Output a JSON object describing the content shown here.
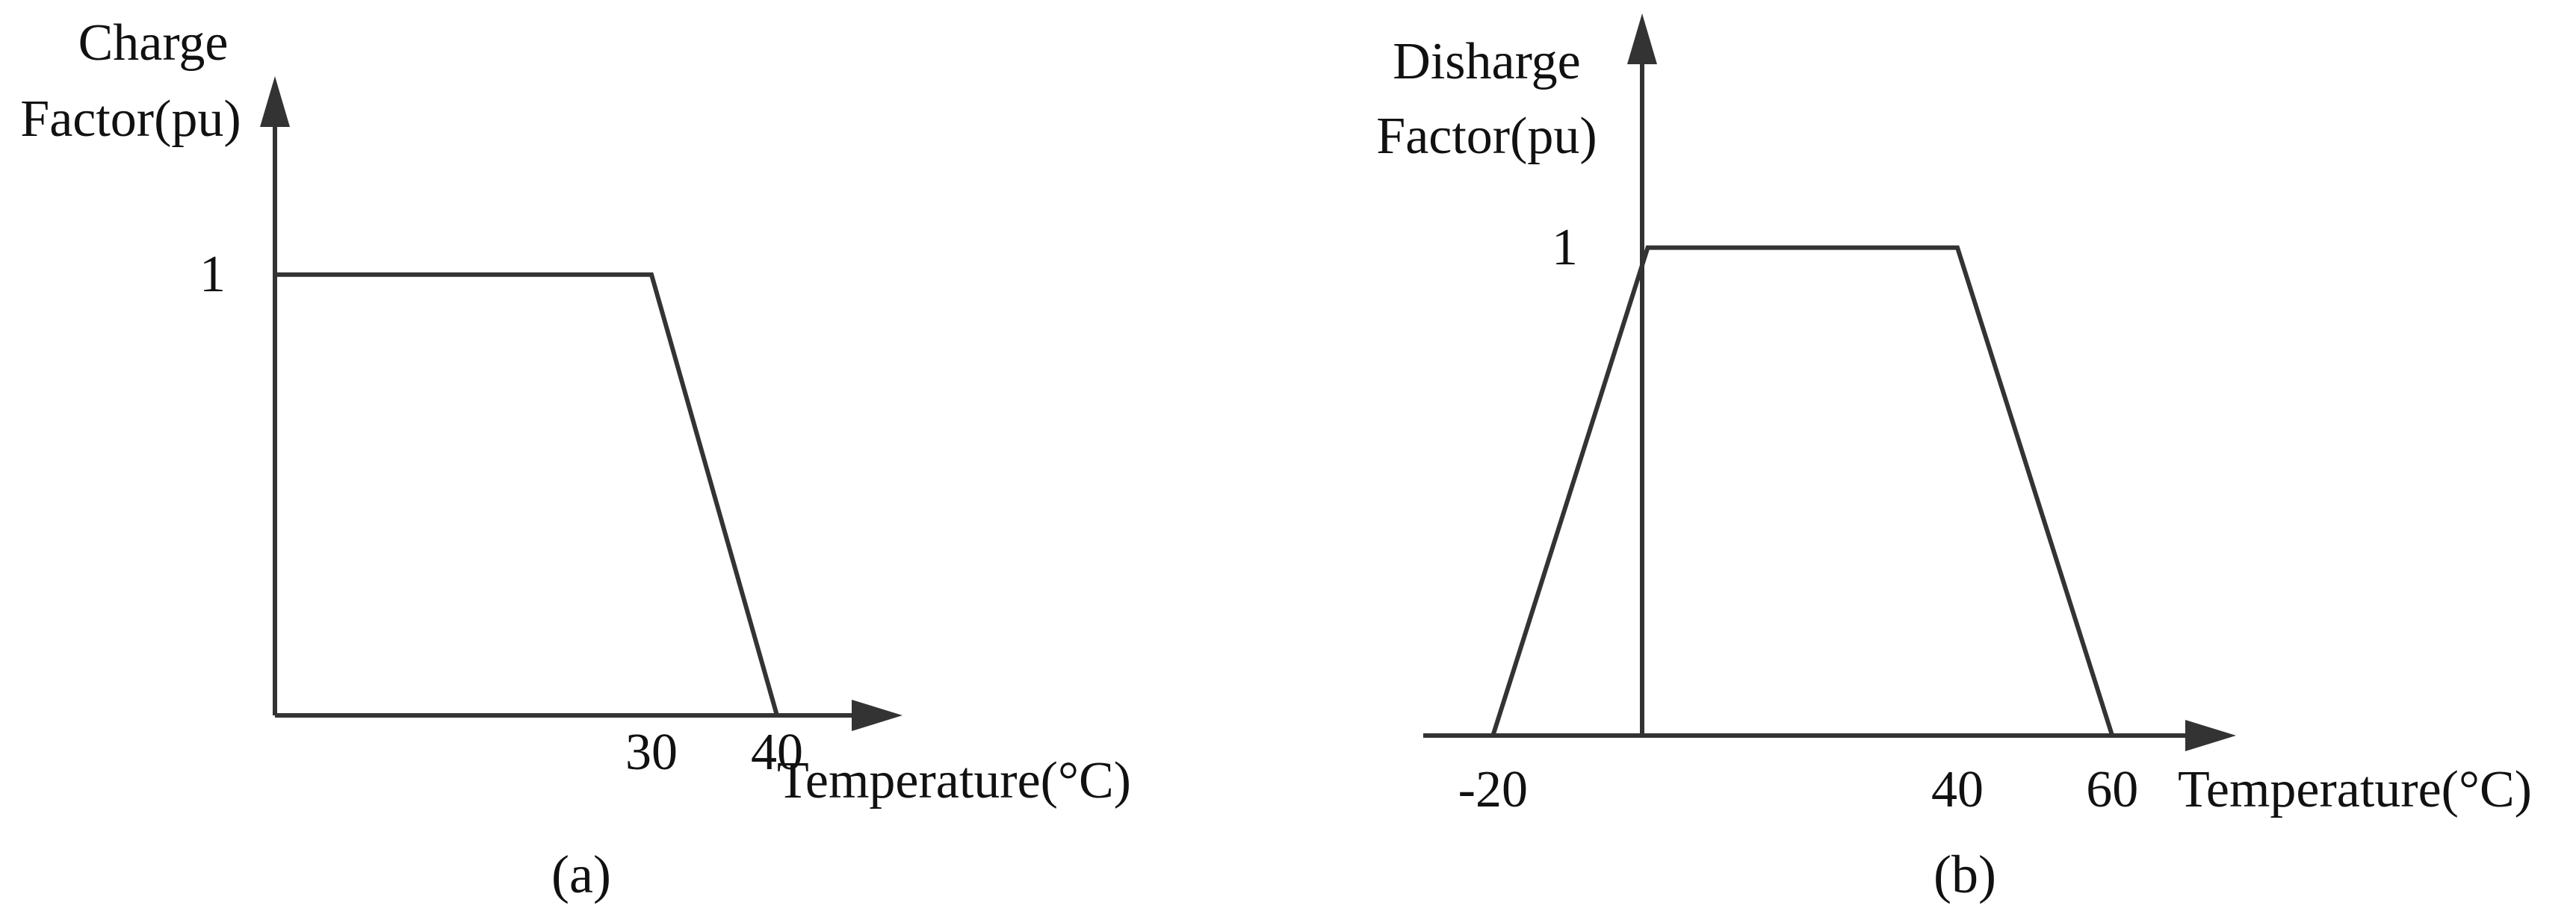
{
  "chart_data": [
    {
      "type": "line",
      "panel_label": "(a)",
      "ylabel": [
        "Charge",
        "Factor(pu)"
      ],
      "xlabel": "Temperature(°C)",
      "y_ticks": [
        {
          "value": 1,
          "label": "1"
        }
      ],
      "x_ticks": [
        {
          "value": 30,
          "label": "30"
        },
        {
          "value": 40,
          "label": "40"
        }
      ],
      "series": [
        {
          "x": [
            0,
            30,
            40
          ],
          "y": [
            1,
            1,
            0
          ]
        }
      ],
      "xlim": [
        0,
        50
      ],
      "ylim": [
        0,
        1.45
      ],
      "grid": false
    },
    {
      "type": "line",
      "panel_label": "(b)",
      "ylabel": [
        "Disharge",
        "Factor(pu)"
      ],
      "xlabel": "Temperature(°C)",
      "y_ticks": [
        {
          "value": 1,
          "label": "1"
        }
      ],
      "x_ticks": [
        {
          "value": -20,
          "label": "-20"
        },
        {
          "value": 40,
          "label": "40"
        },
        {
          "value": 60,
          "label": "60"
        }
      ],
      "series": [
        {
          "x": [
            -20,
            0,
            40,
            60
          ],
          "y": [
            0,
            1,
            1,
            0
          ]
        }
      ],
      "xlim": [
        -29,
        76
      ],
      "ylim": [
        0,
        1.48
      ],
      "grid": false
    }
  ]
}
